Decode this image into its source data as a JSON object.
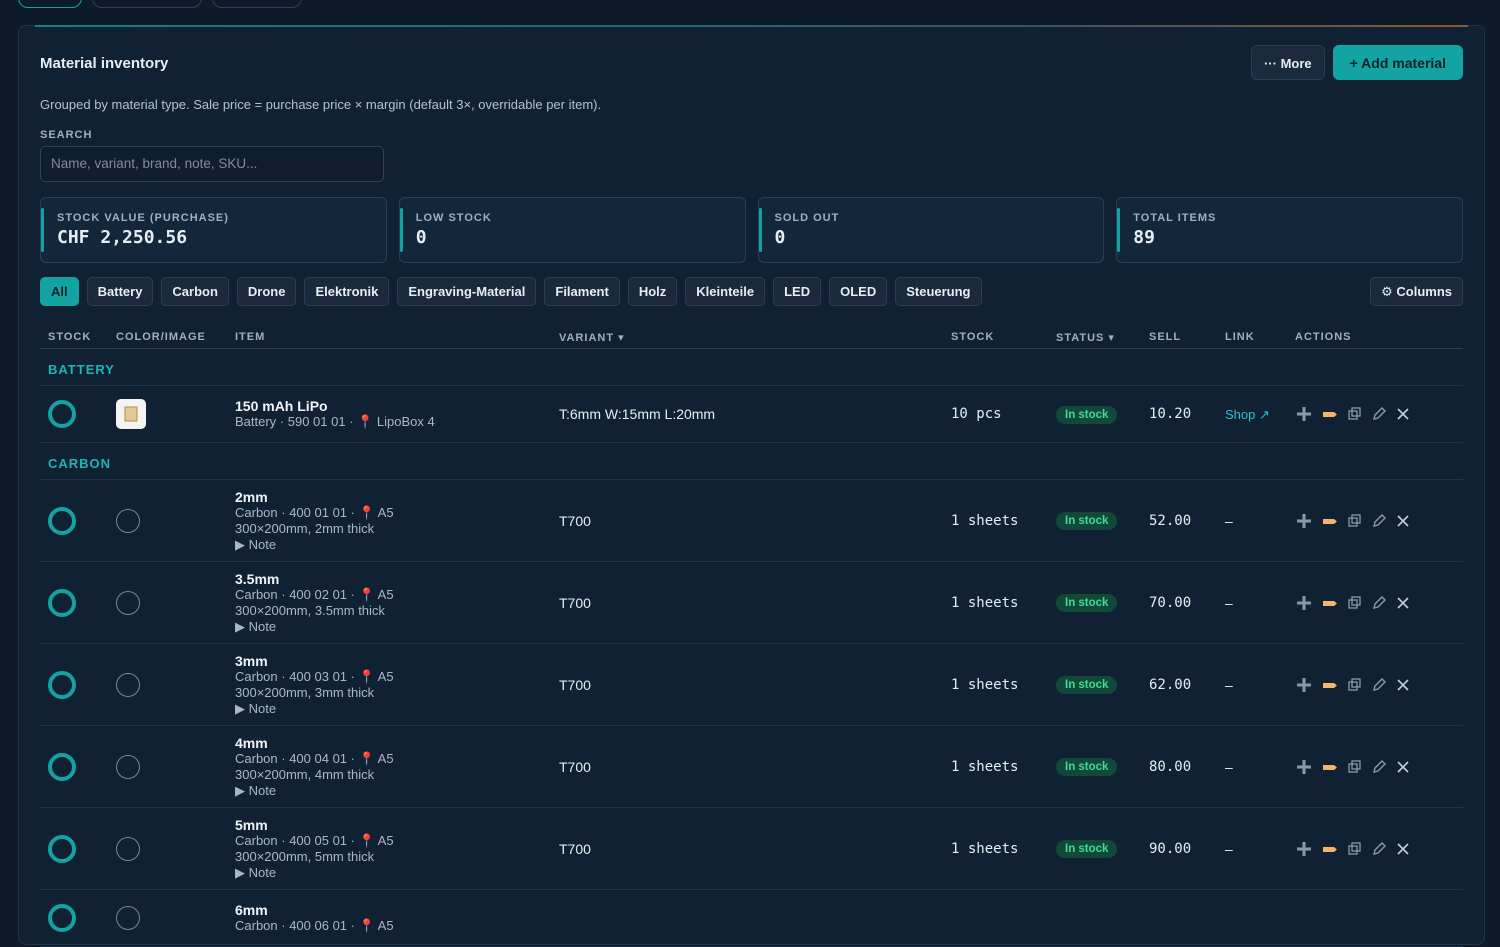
{
  "header": {
    "title": "Material inventory",
    "more": "··· More",
    "add": "+ Add material",
    "description": "Grouped by material type. Sale price = purchase price × margin (default 3×, overridable per item)."
  },
  "search": {
    "label": "SEARCH",
    "placeholder": "Name, variant, brand, note, SKU..."
  },
  "stats": [
    {
      "label": "STOCK VALUE (PURCHASE)",
      "value": "CHF 2,250.56"
    },
    {
      "label": "LOW STOCK",
      "value": "0"
    },
    {
      "label": "SOLD OUT",
      "value": "0"
    },
    {
      "label": "TOTAL ITEMS",
      "value": "89"
    }
  ],
  "filters": [
    "All",
    "Battery",
    "Carbon",
    "Drone",
    "Elektronik",
    "Engraving-Material",
    "Filament",
    "Holz",
    "Kleinteile",
    "LED",
    "OLED",
    "Steuerung"
  ],
  "columns_button": "⚙ Columns",
  "table": {
    "headers": [
      "STOCK",
      "COLOR/IMAGE",
      "ITEM",
      "VARIANT ▾",
      "STOCK",
      "STATUS ▾",
      "SELL",
      "LINK",
      "ACTIONS"
    ],
    "groups": [
      {
        "name": "BATTERY",
        "rows": [
          {
            "title": "150 mAh LiPo",
            "meta": "Battery · 590 01 01 · 📍 LipoBox 4",
            "variant": "T:6mm W:15mm L:20mm",
            "stock": "10 pcs",
            "status": "In stock",
            "sell": "10.20",
            "link": "Shop ↗"
          }
        ]
      },
      {
        "name": "CARBON",
        "rows": [
          {
            "title": "2mm",
            "meta": "Carbon · 400 01 01 · 📍 A5",
            "detail": "300×200mm, 2mm thick",
            "note": "▶ Note",
            "variant": "T700",
            "stock": "1 sheets",
            "status": "In stock",
            "sell": "52.00",
            "link": "–"
          },
          {
            "title": "3.5mm",
            "meta": "Carbon · 400 02 01 · 📍 A5",
            "detail": "300×200mm, 3.5mm thick",
            "note": "▶ Note",
            "variant": "T700",
            "stock": "1 sheets",
            "status": "In stock",
            "sell": "70.00",
            "link": "–"
          },
          {
            "title": "3mm",
            "meta": "Carbon · 400 03 01 · 📍 A5",
            "detail": "300×200mm, 3mm thick",
            "note": "▶ Note",
            "variant": "T700",
            "stock": "1 sheets",
            "status": "In stock",
            "sell": "62.00",
            "link": "–"
          },
          {
            "title": "4mm",
            "meta": "Carbon · 400 04 01 · 📍 A5",
            "detail": "300×200mm, 4mm thick",
            "note": "▶ Note",
            "variant": "T700",
            "stock": "1 sheets",
            "status": "In stock",
            "sell": "80.00",
            "link": "–"
          },
          {
            "title": "5mm",
            "meta": "Carbon · 400 05 01 · 📍 A5",
            "detail": "300×200mm, 5mm thick",
            "note": "▶ Note",
            "variant": "T700",
            "stock": "1 sheets",
            "status": "In stock",
            "sell": "90.00",
            "link": "–"
          },
          {
            "title": "6mm",
            "meta": "Carbon · 400 06 01 · 📍 A5"
          }
        ]
      }
    ]
  }
}
